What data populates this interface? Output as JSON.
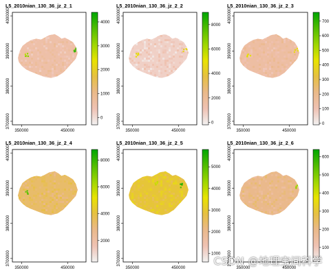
{
  "watermark": "CSDN @地理空间科学",
  "colors": {
    "ramp": [
      "#f2f2f2",
      "#efc2b3",
      "#eab98a",
      "#e6c042",
      "#e8e300",
      "#9ed600",
      "#52bd00",
      "#00a600"
    ],
    "frame": "#000000"
  },
  "chart_data": [
    {
      "type": "heatmap",
      "title": "L5_2010nian_130_36_jz_2_1",
      "x_ticks": [
        350000,
        450000
      ],
      "y_ticks": [
        3700000,
        3800000,
        3900000,
        4000000
      ],
      "xlim": [
        330000,
        490000
      ],
      "ylim": [
        3690000,
        4010000
      ],
      "legend_ticks": [
        0,
        1000,
        2000,
        3000,
        4000
      ],
      "legend_range": [
        -300,
        4400
      ],
      "map_level": 0.18,
      "hotspots": [
        {
          "x": 463000,
          "y": 3905000,
          "level": 0.95
        },
        {
          "x": 360000,
          "y": 3890000,
          "level": 0.75
        }
      ]
    },
    {
      "type": "heatmap",
      "title": "L5_2010nian_130_36_jz_2_2",
      "x_ticks": [
        350000,
        450000
      ],
      "y_ticks": [
        3700000,
        3800000,
        3900000,
        4000000
      ],
      "xlim": [
        330000,
        490000
      ],
      "ylim": [
        3690000,
        4010000
      ],
      "legend_ticks": [
        0,
        2000,
        4000,
        6000,
        8000
      ],
      "legend_range": [
        -200,
        9000
      ],
      "map_level": 0.1,
      "hotspots": [
        {
          "x": 463000,
          "y": 3905000,
          "level": 0.55
        },
        {
          "x": 360000,
          "y": 3890000,
          "level": 0.6
        }
      ]
    },
    {
      "type": "heatmap",
      "title": "L5_2010nian_130_36_jz_2_3",
      "x_ticks": [
        350000,
        450000
      ],
      "y_ticks": [
        3700000,
        3800000,
        3900000,
        4000000
      ],
      "xlim": [
        330000,
        490000
      ],
      "ylim": [
        3690000,
        4010000
      ],
      "legend_ticks": [
        0,
        100,
        200,
        300,
        400,
        500,
        600,
        700
      ],
      "legend_range": [
        -10,
        760
      ],
      "map_level": 0.2,
      "hotspots": [
        {
          "x": 463000,
          "y": 3905000,
          "level": 0.6
        },
        {
          "x": 360000,
          "y": 3890000,
          "level": 0.6
        }
      ]
    },
    {
      "type": "heatmap",
      "title": "L5_2010nian_130_36_jz_2_4",
      "x_ticks": [
        350000,
        450000
      ],
      "y_ticks": [
        3700000,
        3800000,
        3900000,
        4000000
      ],
      "xlim": [
        330000,
        490000
      ],
      "ylim": [
        3690000,
        4010000
      ],
      "legend_ticks": [
        2000,
        4000,
        6000,
        8000
      ],
      "legend_range": [
        400,
        8800
      ],
      "map_level": 0.35,
      "hotspots": [
        {
          "x": 360000,
          "y": 3890000,
          "level": 0.9
        }
      ]
    },
    {
      "type": "heatmap",
      "title": "L5_2010nian_130_36_jz_2_5",
      "x_ticks": [
        350000,
        450000
      ],
      "y_ticks": [
        3700000,
        3800000,
        3900000,
        4000000
      ],
      "xlim": [
        330000,
        490000
      ],
      "ylim": [
        3690000,
        4010000
      ],
      "legend_ticks": [
        1000,
        2000,
        3000,
        4000,
        5000
      ],
      "legend_range": [
        600,
        5800
      ],
      "map_level": 0.45,
      "hotspots": [
        {
          "x": 455000,
          "y": 3910000,
          "level": 0.95
        },
        {
          "x": 400000,
          "y": 3915000,
          "level": 0.7
        }
      ]
    },
    {
      "type": "heatmap",
      "title": "L5_2010nian_130_36_jz_2_6",
      "x_ticks": [
        350000,
        450000
      ],
      "y_ticks": [
        3700000,
        3800000,
        3900000,
        4000000
      ],
      "xlim": [
        330000,
        490000
      ],
      "ylim": [
        3690000,
        4010000
      ],
      "legend_ticks": [
        100,
        200,
        300,
        400,
        500,
        600
      ],
      "legend_range": [
        20,
        640
      ],
      "map_level": 0.28,
      "hotspots": [
        {
          "x": 463000,
          "y": 3905000,
          "level": 0.75
        }
      ]
    }
  ]
}
